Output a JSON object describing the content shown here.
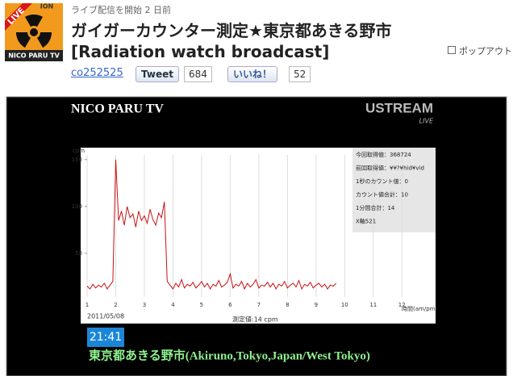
{
  "header": {
    "icon": {
      "ribbon": "LIVE",
      "top_text": "ION",
      "caption": "NICO PARU TV"
    },
    "started": "ライブ配信を開始 2 日前",
    "title_line1": "ガイガーカウンター測定★東京都あきる野市",
    "title_line2": "[Radiation watch broadcast]",
    "popout": "ポップアウト",
    "community": "co252525",
    "tweet": {
      "label": "Tweet",
      "count": 684
    },
    "like": {
      "label": "いいね！",
      "count": 52
    }
  },
  "video": {
    "channel": "NICO PARU TV",
    "logo": "USTREAM",
    "logo_sub": "LIVE",
    "chart": {
      "type": "line",
      "y_label": "cpm",
      "x_label": "時間(am/pm)",
      "date": "2011/05/08",
      "caption": "測定値:14 cpm",
      "color": "#cc1111",
      "grid": true,
      "xlim": [
        1,
        12.5
      ],
      "ylim": [
        0,
        155
      ],
      "xticks": [
        1,
        2,
        3,
        4,
        5,
        6,
        7,
        8,
        9,
        10,
        11,
        12
      ],
      "yticks": [
        50,
        100,
        150
      ],
      "x": [
        1.0,
        1.1,
        1.2,
        1.3,
        1.4,
        1.5,
        1.6,
        1.7,
        1.8,
        1.9,
        2.0,
        2.1,
        2.2,
        2.3,
        2.4,
        2.5,
        2.6,
        2.7,
        2.8,
        2.9,
        3.0,
        3.1,
        3.2,
        3.3,
        3.4,
        3.5,
        3.6,
        3.7,
        3.8,
        3.9,
        4.0,
        4.1,
        4.2,
        4.3,
        4.4,
        4.5,
        4.6,
        4.7,
        4.8,
        4.9,
        5.0,
        5.1,
        5.2,
        5.3,
        5.4,
        5.5,
        5.6,
        5.7,
        5.8,
        5.9,
        6.0,
        6.1,
        6.2,
        6.3,
        6.4,
        6.5,
        6.6,
        6.7,
        6.8,
        6.9,
        7.0,
        7.1,
        7.2,
        7.3,
        7.4,
        7.5,
        7.6,
        7.7,
        7.8,
        7.9,
        8.0,
        8.1,
        8.2,
        8.3,
        8.4,
        8.5,
        8.6,
        8.7,
        8.8,
        8.9,
        9.0,
        9.1,
        9.2,
        9.3,
        9.4,
        9.5,
        9.6,
        9.7
      ],
      "values": [
        15,
        12,
        17,
        13,
        16,
        14,
        18,
        12,
        16,
        20,
        150,
        85,
        95,
        80,
        100,
        88,
        92,
        78,
        95,
        85,
        90,
        82,
        97,
        86,
        80,
        93,
        88,
        105,
        20,
        16,
        12,
        18,
        14,
        22,
        13,
        17,
        15,
        19,
        13,
        16,
        20,
        14,
        18,
        12,
        17,
        15,
        21,
        14,
        16,
        19,
        28,
        13,
        17,
        15,
        20,
        12,
        18,
        14,
        17,
        22,
        13,
        16,
        15,
        19,
        14,
        18,
        12,
        17,
        15,
        20,
        13,
        16,
        18,
        14,
        21,
        12,
        17,
        15,
        19,
        13,
        16,
        18,
        14,
        17,
        12,
        16,
        15,
        18
      ]
    },
    "info": [
      "今回取得値：368724",
      "前回取得値：¥¥?¥hid¥vid",
      "1秒のカウント値：0",
      "カウント値合計：10",
      "1分間合計：14",
      "X軸521"
    ],
    "time": "21:41",
    "location": "東京都あきる野市(Akiruno,Tokyo,Japan/West Tokyo)"
  }
}
